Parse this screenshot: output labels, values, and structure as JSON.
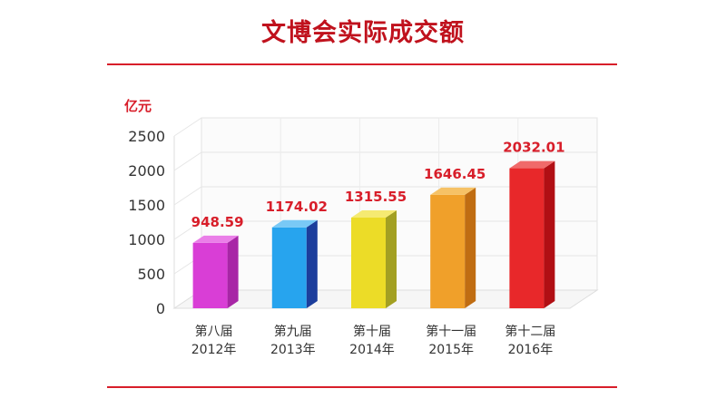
{
  "title": "文博会实际成交额",
  "chart_data": {
    "type": "bar",
    "title": "文博会实际成交额",
    "ylabel": "亿元",
    "xlabel": "",
    "ylim": [
      0,
      2500
    ],
    "yticks": [
      0,
      500,
      1000,
      1500,
      2000,
      2500
    ],
    "grid": true,
    "categories": [
      [
        "第八届",
        "2012年"
      ],
      [
        "第九届",
        "2013年"
      ],
      [
        "第十届",
        "2014年"
      ],
      [
        "第十一届",
        "2015年"
      ],
      [
        "第十二届",
        "2016年"
      ]
    ],
    "values": [
      948.59,
      1174.02,
      1315.55,
      1646.45,
      2032.01
    ],
    "value_labels": [
      "948.59",
      "1174.02",
      "1315.55",
      "1646.45",
      "2032.01"
    ],
    "bar_colors": [
      {
        "front": "#d93ed6",
        "side": "#a826a6",
        "top": "#ea7fe8"
      },
      {
        "front": "#27a4ee",
        "side": "#1c3e9c",
        "top": "#79c9f6"
      },
      {
        "front": "#ecdc27",
        "side": "#a3a022",
        "top": "#f5ea72"
      },
      {
        "front": "#f0a02a",
        "side": "#c06d12",
        "top": "#f6c266"
      },
      {
        "front": "#e8282a",
        "side": "#b10f14",
        "top": "#f06a6a"
      }
    ],
    "label_color": "#d81e2a"
  }
}
